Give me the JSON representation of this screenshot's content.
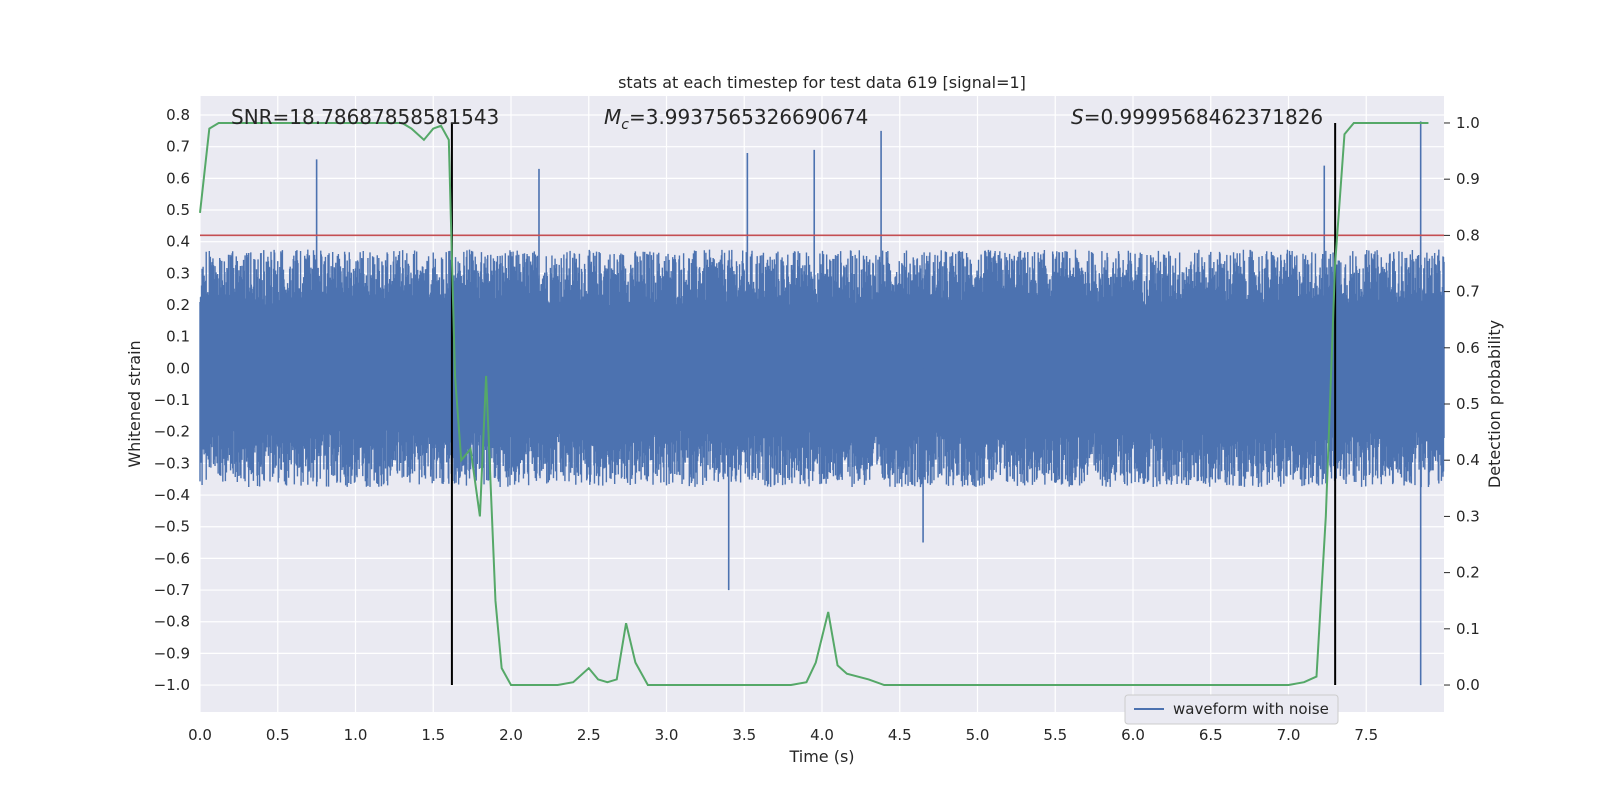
{
  "chart_data": {
    "type": "line",
    "title": "stats at each timestep for test data 619 [signal=1]",
    "xlabel": "Time (s)",
    "ylabel_left": "Whitened strain",
    "ylabel_right": "Detection probability",
    "xlim": [
      0.0,
      8.0
    ],
    "ylim_left": [
      -1.085,
      0.86
    ],
    "ylim_right": [
      -0.048,
      1.048
    ],
    "grid": true,
    "legend_position": "lower-right",
    "x_ticks": [
      "0.0",
      "0.5",
      "1.0",
      "1.5",
      "2.0",
      "2.5",
      "3.0",
      "3.5",
      "4.0",
      "4.5",
      "5.0",
      "5.5",
      "6.0",
      "6.5",
      "7.0",
      "7.5"
    ],
    "y_left_ticks": [
      "0.8",
      "0.7",
      "0.6",
      "0.5",
      "0.4",
      "0.3",
      "0.2",
      "0.1",
      "0.0",
      "-0.1",
      "-0.2",
      "-0.3",
      "-0.4",
      "-0.5",
      "-0.6",
      "-0.7",
      "-0.8",
      "-0.9",
      "-1.0"
    ],
    "y_right_ticks": [
      "1.0",
      "0.9",
      "0.8",
      "0.7",
      "0.6",
      "0.5",
      "0.4",
      "0.3",
      "0.2",
      "0.1",
      "0.0"
    ],
    "annotations": {
      "snr": "SNR=18.78687858581543",
      "mc_symbol": "M",
      "mc_sub": "c",
      "mc_value": "=3.9937565326690674",
      "s_symbol": "S",
      "s_value": "=0.9999568462371826"
    },
    "threshold_line": {
      "y": 0.42,
      "color": "#c44e52"
    },
    "vertical_markers": [
      {
        "x": 1.62,
        "color": "#000000"
      },
      {
        "x": 7.3,
        "color": "#000000"
      }
    ],
    "series": [
      {
        "name": "waveform with noise",
        "axis": "left",
        "color": "#4c72b0",
        "description_range": {
          "x_start": 0.0,
          "x_end": 8.0,
          "typical_amplitude": 0.3,
          "max": 0.78,
          "min": -1.0
        },
        "spikes": [
          {
            "x": 0.75,
            "y": 0.66
          },
          {
            "x": 2.18,
            "y": 0.63
          },
          {
            "x": 3.4,
            "y": -0.7
          },
          {
            "x": 3.52,
            "y": 0.68
          },
          {
            "x": 3.95,
            "y": 0.69
          },
          {
            "x": 4.38,
            "y": 0.75
          },
          {
            "x": 4.65,
            "y": -0.55
          },
          {
            "x": 7.23,
            "y": 0.64
          },
          {
            "x": 7.85,
            "y": 0.78
          },
          {
            "x": 7.85,
            "y": -1.0
          }
        ]
      },
      {
        "name": "",
        "axis": "right",
        "color": "#55a868",
        "x": [
          0.0,
          0.06,
          0.12,
          0.2,
          0.4,
          0.6,
          0.8,
          1.0,
          1.2,
          1.3,
          1.36,
          1.44,
          1.5,
          1.55,
          1.6,
          1.64,
          1.68,
          1.74,
          1.8,
          1.84,
          1.9,
          1.94,
          2.0,
          2.1,
          2.2,
          2.3,
          2.4,
          2.5,
          2.56,
          2.62,
          2.68,
          2.74,
          2.8,
          2.88,
          3.0,
          3.2,
          3.5,
          3.8,
          3.9,
          3.96,
          4.04,
          4.1,
          4.16,
          4.3,
          4.4,
          4.6,
          5.0,
          5.2,
          5.5,
          6.0,
          6.2,
          6.5,
          6.8,
          7.0,
          7.1,
          7.18,
          7.24,
          7.3,
          7.36,
          7.42,
          7.5,
          7.7,
          7.9
        ],
        "values": [
          0.84,
          0.99,
          1.0,
          1.0,
          1.0,
          1.0,
          1.0,
          1.0,
          1.0,
          1.0,
          0.99,
          0.97,
          0.99,
          0.995,
          0.97,
          0.55,
          0.4,
          0.42,
          0.3,
          0.55,
          0.15,
          0.03,
          0.0,
          0.0,
          0.0,
          0.0,
          0.005,
          0.03,
          0.01,
          0.005,
          0.01,
          0.11,
          0.04,
          0.0,
          0.0,
          0.0,
          0.0,
          0.0,
          0.005,
          0.04,
          0.13,
          0.035,
          0.02,
          0.01,
          0.0,
          0.0,
          0.0,
          0.0,
          0.0,
          0.0,
          0.0,
          0.0,
          0.0,
          0.0,
          0.005,
          0.015,
          0.3,
          0.75,
          0.98,
          1.0,
          1.0,
          1.0,
          1.0
        ]
      }
    ]
  }
}
